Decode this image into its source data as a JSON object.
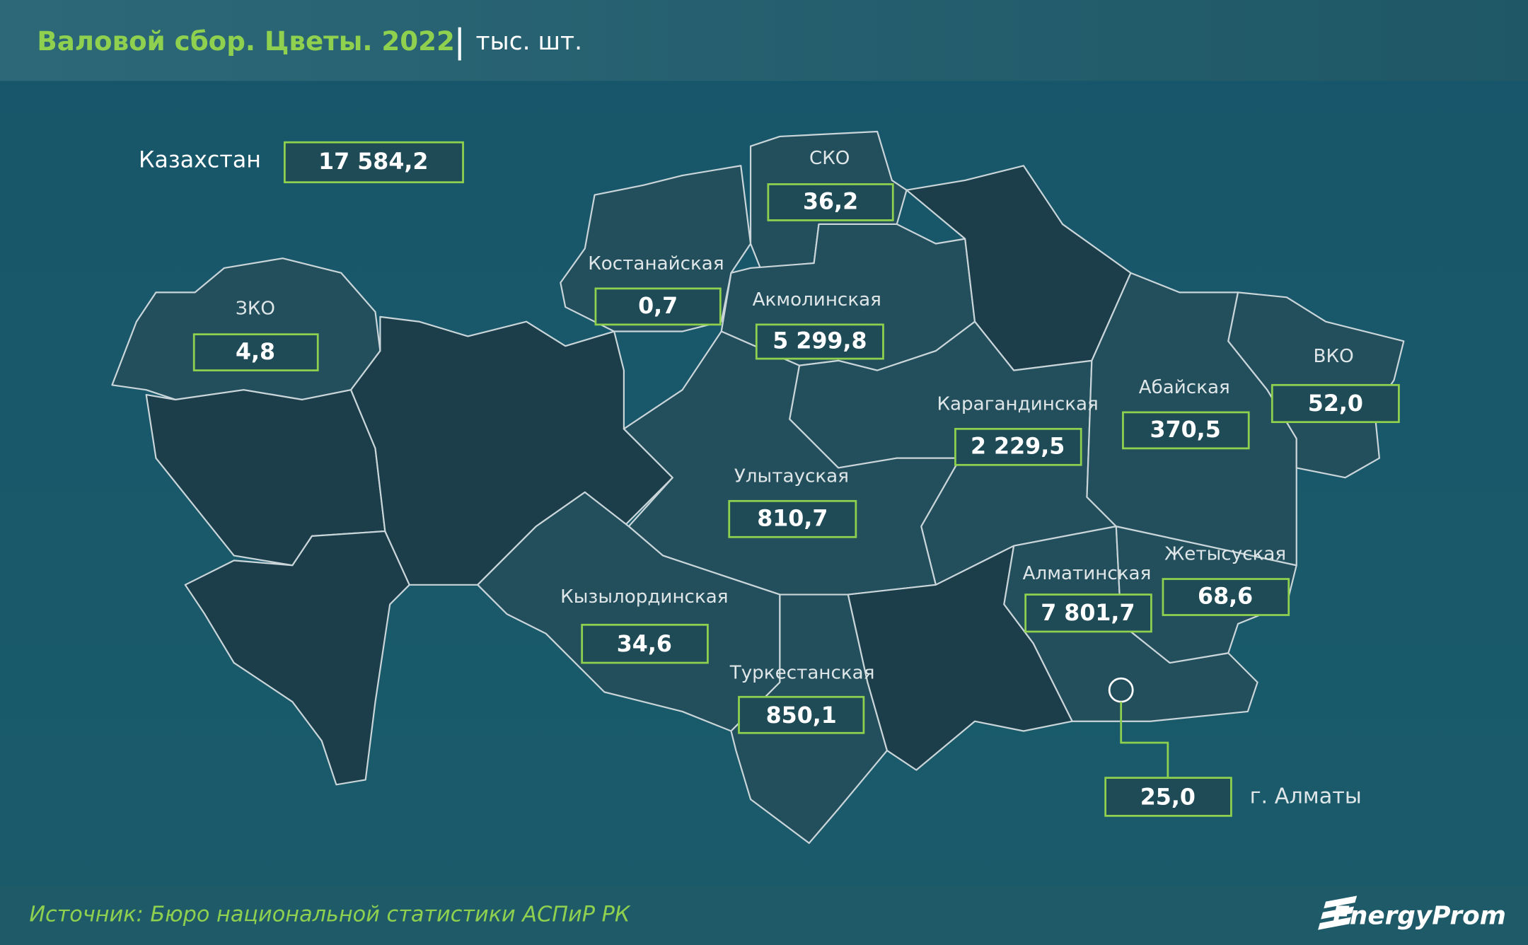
{
  "header": {
    "title": "Валовой сбор. Цветы. 2022",
    "unit": "тыс. шт."
  },
  "total": {
    "label": "Казахстан",
    "value": "17 584,2"
  },
  "regions": [
    {
      "name": "СКО",
      "value": "36,2"
    },
    {
      "name": "Костанайская",
      "value": "0,7"
    },
    {
      "name": "Акмолинская",
      "value": "5 299,8"
    },
    {
      "name": "ЗКО",
      "value": "4,8"
    },
    {
      "name": "ВКО",
      "value": "52,0"
    },
    {
      "name": "Абайская",
      "value": "370,5"
    },
    {
      "name": "Карагандинская",
      "value": "2 229,5"
    },
    {
      "name": "Улытауская",
      "value": "810,7"
    },
    {
      "name": "Жетысуская",
      "value": "68,6"
    },
    {
      "name": "Алматинская",
      "value": "7 801,7"
    },
    {
      "name": "Кызылординская",
      "value": "34,6"
    },
    {
      "name": "Туркестанская",
      "value": "850,1"
    },
    {
      "name": "г. Алматы",
      "value": "25,0"
    }
  ],
  "footer": {
    "source": "Источник: Бюро национальной статистики АСПиР РК",
    "logo": "EnergyProm"
  }
}
